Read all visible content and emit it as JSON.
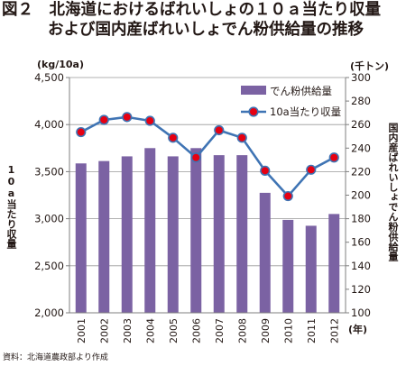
{
  "title": {
    "line1": "図２　北海道におけるばれいしょの１０ａ当たり収量",
    "line2": "および国内産ばれいしょでん粉供給量の推移"
  },
  "source": "資料：北海道農政部より作成",
  "colors": {
    "bar": "#7b62a3",
    "line": "#3f74b4",
    "marker": "#e60012",
    "grid": "#999999"
  },
  "chart_data": {
    "type": "bar",
    "categories": [
      "2001",
      "2002",
      "2003",
      "2004",
      "2005",
      "2006",
      "2007",
      "2008",
      "2009",
      "2010",
      "2011",
      "2012"
    ],
    "x_unit": "(年)",
    "series": [
      {
        "name": "でん粉供給量",
        "type": "bar",
        "axis": "right",
        "values": [
          227,
          229,
          233,
          240,
          233,
          240,
          234,
          234,
          202,
          179,
          174,
          184
        ]
      },
      {
        "name": "10a当たり収量",
        "type": "line",
        "axis": "left",
        "values": [
          3920,
          4050,
          4080,
          4040,
          3860,
          3650,
          3940,
          3860,
          3510,
          3240,
          3520,
          3650
        ]
      }
    ],
    "y_left": {
      "label": "10a当たり収量",
      "unit": "(kg/10a)",
      "range": [
        2000,
        4500
      ],
      "ticks": [
        "2,000",
        "2,500",
        "3,000",
        "3,500",
        "4,000",
        "4,500"
      ],
      "tick_values": [
        2000,
        2500,
        3000,
        3500,
        4000,
        4500
      ]
    },
    "y_right": {
      "label": "国内産ばれいしょでん粉供給量",
      "unit": "(千トン)",
      "range": [
        100,
        300
      ],
      "ticks": [
        "100",
        "120",
        "140",
        "160",
        "180",
        "200",
        "220",
        "240",
        "260",
        "280",
        "300"
      ],
      "tick_values": [
        100,
        120,
        140,
        160,
        180,
        200,
        220,
        240,
        260,
        280,
        300
      ]
    },
    "grid": true,
    "legend_position": "top-right"
  }
}
